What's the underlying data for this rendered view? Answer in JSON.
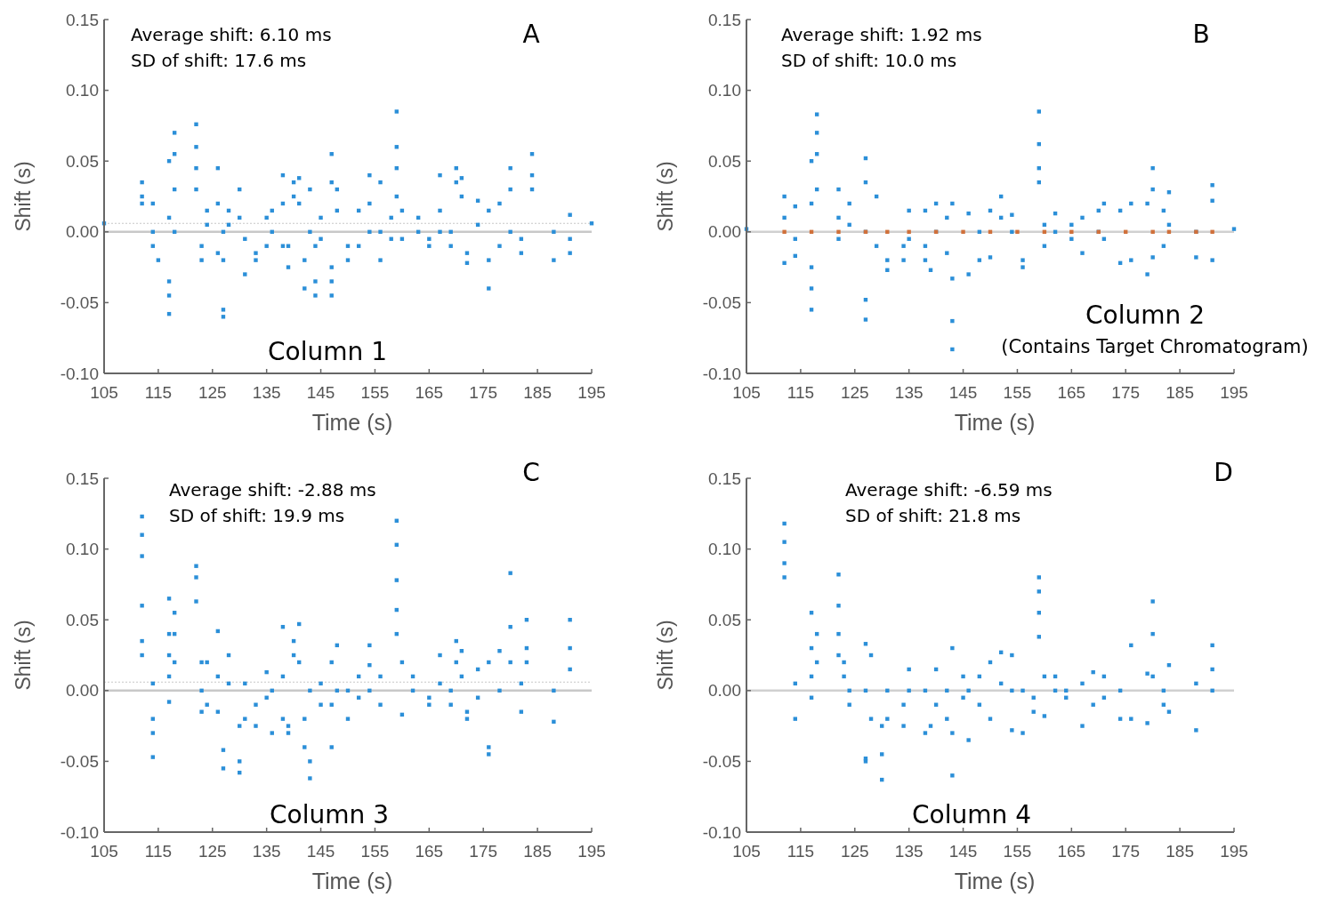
{
  "chart_data": [
    {
      "type": "scatter",
      "xlabel": "Time (s)",
      "ylabel": "Shift (s)",
      "annotations": [
        "Average shift: 6.10 ms",
        "SD of shift: 17.6 ms",
        "A",
        "Column 1"
      ],
      "xlim": [
        105,
        195
      ],
      "xticks": [
        105,
        115,
        125,
        135,
        145,
        155,
        165,
        175,
        185,
        195
      ],
      "ylim": [
        -0.1,
        0.15
      ],
      "yticks": [
        {
          "value": -0.1,
          "label": "-0.10"
        },
        {
          "value": -0.05,
          "label": "-0.05"
        },
        {
          "value": 0,
          "label": "0.00"
        },
        {
          "value": 0.05,
          "label": "0.05"
        },
        {
          "value": 0.1,
          "label": "0.10"
        },
        {
          "value": 0.15,
          "label": "0.15"
        }
      ],
      "marker": "square",
      "grid": false,
      "ref_lines": [
        {
          "axis": "y",
          "value": 0,
          "color": "#c8c8c8",
          "line_style": "solid"
        },
        {
          "axis": "y",
          "value": 0.006,
          "color": "#c8c8c8",
          "line_style": "dotted"
        }
      ],
      "series": [
        {
          "color": "#2b8fd8",
          "x": [
            105,
            112,
            112,
            112,
            114,
            114,
            114,
            115,
            117,
            117,
            117,
            117,
            117,
            118,
            118,
            118,
            118,
            122,
            122,
            122,
            122,
            123,
            123,
            124,
            124,
            126,
            126,
            126,
            127,
            127,
            127,
            127,
            128,
            128,
            130,
            130,
            131,
            131,
            133,
            133,
            135,
            135,
            136,
            136,
            138,
            138,
            138,
            139,
            139,
            140,
            140,
            141,
            141,
            142,
            142,
            143,
            143,
            144,
            144,
            144,
            145,
            145,
            147,
            147,
            147,
            147,
            147,
            148,
            148,
            150,
            150,
            152,
            152,
            154,
            154,
            154,
            156,
            156,
            156,
            158,
            158,
            159,
            159,
            159,
            159,
            160,
            160,
            163,
            163,
            165,
            165,
            167,
            167,
            167,
            169,
            169,
            170,
            170,
            171,
            171,
            172,
            172,
            174,
            174,
            176,
            176,
            176,
            178,
            178,
            180,
            180,
            180,
            182,
            182,
            184,
            184,
            184,
            188,
            188,
            191,
            191,
            191,
            195
          ],
          "values": [
            0.006,
            0.035,
            0.02,
            0.025,
            0.02,
            0.0,
            -0.01,
            -0.02,
            0.05,
            0.01,
            -0.035,
            -0.058,
            -0.045,
            0.07,
            0.055,
            0.03,
            0.0,
            0.076,
            0.06,
            0.045,
            0.03,
            -0.01,
            -0.02,
            0.015,
            0.005,
            0.045,
            0.02,
            -0.015,
            -0.055,
            -0.06,
            0.0,
            -0.02,
            0.015,
            0.005,
            0.03,
            0.01,
            -0.005,
            -0.03,
            -0.015,
            -0.02,
            0.01,
            -0.01,
            0.015,
            0.0,
            0.04,
            0.02,
            -0.01,
            -0.01,
            -0.025,
            0.035,
            0.025,
            0.038,
            0.02,
            -0.02,
            -0.04,
            0.03,
            0.0,
            -0.045,
            -0.035,
            -0.01,
            0.01,
            -0.005,
            0.055,
            0.035,
            -0.025,
            -0.045,
            -0.035,
            0.03,
            0.015,
            -0.01,
            -0.02,
            0.015,
            -0.01,
            0.04,
            0.02,
            0.0,
            0.035,
            0.0,
            -0.02,
            0.01,
            -0.005,
            0.085,
            0.06,
            0.045,
            0.025,
            0.015,
            -0.005,
            0.01,
            0.0,
            -0.005,
            -0.01,
            0.04,
            0.015,
            0.0,
            -0.01,
            0.0,
            0.045,
            0.035,
            0.038,
            0.025,
            -0.015,
            -0.022,
            0.022,
            0.005,
            0.015,
            -0.02,
            -0.04,
            0.02,
            -0.01,
            0.045,
            0.03,
            0.0,
            -0.005,
            -0.015,
            0.055,
            0.04,
            0.03,
            0.0,
            -0.02,
            0.012,
            -0.005,
            -0.015,
            0.006
          ]
        }
      ]
    },
    {
      "type": "scatter",
      "xlabel": "Time (s)",
      "ylabel": "Shift (s)",
      "annotations": [
        "Average shift: 1.92 ms",
        "SD of shift: 10.0 ms",
        "B",
        "Column 2",
        "(Contains Target Chromatogram)"
      ],
      "xlim": [
        105,
        195
      ],
      "xticks": [
        105,
        115,
        125,
        135,
        145,
        155,
        165,
        175,
        185,
        195
      ],
      "ylim": [
        -0.1,
        0.15
      ],
      "yticks": [
        {
          "value": -0.1,
          "label": "-0.10"
        },
        {
          "value": -0.05,
          "label": "-0.05"
        },
        {
          "value": 0,
          "label": "0.00"
        },
        {
          "value": 0.05,
          "label": "0.05"
        },
        {
          "value": 0.1,
          "label": "0.10"
        },
        {
          "value": 0.15,
          "label": "0.15"
        }
      ],
      "marker": "square",
      "grid": false,
      "ref_lines": [
        {
          "axis": "y",
          "value": 0,
          "color": "#d0d0d0",
          "line_style": "solid"
        }
      ],
      "series": [
        {
          "color": "#2b8fd8",
          "x": [
            105,
            112,
            112,
            112,
            114,
            114,
            114,
            117,
            117,
            117,
            117,
            117,
            118,
            118,
            118,
            118,
            122,
            122,
            122,
            124,
            124,
            127,
            127,
            127,
            127,
            127,
            129,
            129,
            131,
            131,
            134,
            134,
            135,
            135,
            138,
            138,
            138,
            139,
            140,
            140,
            142,
            142,
            143,
            143,
            143,
            146,
            146,
            148,
            148,
            150,
            150,
            152,
            152,
            154,
            154,
            156,
            156,
            159,
            159,
            159,
            159,
            160,
            160,
            162,
            162,
            165,
            165,
            167,
            167,
            170,
            170,
            171,
            171,
            174,
            174,
            176,
            176,
            179,
            179,
            180,
            180,
            180,
            182,
            182,
            183,
            183,
            188,
            188,
            191,
            191,
            191,
            195,
            143
          ],
          "values": [
            0.002,
            0.025,
            0.01,
            -0.022,
            0.018,
            -0.005,
            -0.017,
            0.05,
            0.02,
            -0.025,
            -0.04,
            -0.055,
            0.083,
            0.07,
            0.055,
            0.03,
            0.03,
            0.01,
            -0.005,
            0.02,
            0.005,
            0.052,
            0.035,
            0.0,
            -0.048,
            -0.062,
            0.025,
            -0.01,
            -0.02,
            -0.027,
            -0.01,
            -0.02,
            0.015,
            -0.005,
            0.015,
            -0.01,
            -0.02,
            -0.027,
            0.02,
            0.0,
            -0.015,
            0.01,
            0.02,
            -0.033,
            -0.063,
            0.013,
            -0.03,
            0.0,
            -0.02,
            0.015,
            -0.018,
            0.025,
            0.01,
            0.012,
            0.0,
            -0.02,
            -0.025,
            0.085,
            0.062,
            0.045,
            0.035,
            0.005,
            -0.01,
            0.013,
            0.0,
            0.005,
            -0.005,
            -0.015,
            0.01,
            0.015,
            0.0,
            0.02,
            -0.005,
            0.015,
            -0.022,
            0.02,
            -0.02,
            0.02,
            -0.03,
            0.045,
            0.03,
            -0.018,
            0.015,
            -0.01,
            0.028,
            0.005,
            0.0,
            -0.018,
            0.033,
            0.022,
            -0.02,
            0.002,
            -0.083
          ]
        },
        {
          "color": "#d0703a",
          "x": [
            112,
            117,
            122,
            127,
            131,
            135,
            140,
            145,
            150,
            155,
            160,
            165,
            170,
            175,
            180,
            183,
            188,
            191
          ],
          "values": [
            0,
            0,
            0,
            0,
            0,
            0,
            0,
            0,
            0,
            0,
            0,
            0,
            0,
            0,
            0,
            0,
            0,
            0
          ]
        }
      ]
    },
    {
      "type": "scatter",
      "xlabel": "Time (s)",
      "ylabel": "Shift (s)",
      "annotations": [
        "Average shift: -2.88 ms",
        "SD of shift: 19.9 ms",
        "C",
        "Column 3"
      ],
      "xlim": [
        105,
        195
      ],
      "xticks": [
        105,
        115,
        125,
        135,
        145,
        155,
        165,
        175,
        185,
        195
      ],
      "ylim": [
        -0.1,
        0.15
      ],
      "yticks": [
        {
          "value": -0.1,
          "label": "-0.10"
        },
        {
          "value": -0.05,
          "label": "-0.05"
        },
        {
          "value": 0,
          "label": "0.00"
        },
        {
          "value": 0.05,
          "label": "0.05"
        },
        {
          "value": 0.1,
          "label": "0.10"
        },
        {
          "value": 0.15,
          "label": "0.15"
        }
      ],
      "marker": "square",
      "grid": false,
      "ref_lines": [
        {
          "axis": "y",
          "value": 0,
          "color": "#c8c8c8",
          "line_style": "solid"
        },
        {
          "axis": "y",
          "value": 0.006,
          "color": "#c8c8c8",
          "line_style": "dotted"
        }
      ],
      "series": [
        {
          "color": "#2b8fd8",
          "x": [
            112,
            112,
            112,
            112,
            112,
            112,
            114,
            114,
            114,
            114,
            117,
            117,
            117,
            117,
            117,
            118,
            118,
            118,
            122,
            122,
            122,
            123,
            123,
            123,
            124,
            124,
            126,
            126,
            126,
            127,
            127,
            128,
            128,
            130,
            130,
            130,
            131,
            131,
            133,
            133,
            135,
            135,
            136,
            136,
            138,
            138,
            138,
            139,
            139,
            140,
            140,
            141,
            141,
            142,
            142,
            143,
            143,
            143,
            145,
            145,
            147,
            147,
            147,
            148,
            148,
            150,
            150,
            152,
            152,
            154,
            154,
            154,
            156,
            156,
            159,
            159,
            159,
            159,
            159,
            160,
            160,
            162,
            162,
            165,
            165,
            167,
            167,
            169,
            169,
            170,
            170,
            171,
            171,
            172,
            172,
            174,
            174,
            176,
            176,
            176,
            178,
            178,
            180,
            180,
            180,
            182,
            182,
            183,
            183,
            183,
            188,
            188,
            191,
            191,
            191
          ],
          "values": [
            0.123,
            0.11,
            0.095,
            0.06,
            0.035,
            0.025,
            0.005,
            -0.02,
            -0.03,
            -0.047,
            0.065,
            0.04,
            0.025,
            0.01,
            -0.008,
            0.055,
            0.04,
            0.02,
            0.088,
            0.08,
            0.063,
            0.02,
            0.0,
            -0.015,
            0.02,
            -0.01,
            0.042,
            0.01,
            -0.015,
            -0.042,
            -0.055,
            0.025,
            0.005,
            -0.025,
            -0.05,
            -0.058,
            0.005,
            -0.02,
            -0.01,
            -0.025,
            0.013,
            -0.005,
            0.0,
            -0.03,
            0.045,
            0.01,
            -0.02,
            -0.025,
            -0.03,
            0.035,
            0.025,
            0.047,
            0.02,
            -0.02,
            -0.04,
            -0.05,
            -0.062,
            0.0,
            0.005,
            -0.01,
            0.02,
            -0.01,
            -0.04,
            0.032,
            0.0,
            0.0,
            -0.02,
            0.01,
            -0.005,
            0.018,
            0.032,
            0.0,
            0.01,
            -0.01,
            0.12,
            0.103,
            0.078,
            0.057,
            0.04,
            0.02,
            -0.017,
            0.01,
            0.0,
            -0.005,
            -0.01,
            0.025,
            0.005,
            -0.01,
            0.0,
            0.035,
            0.02,
            0.028,
            0.01,
            -0.015,
            -0.02,
            0.015,
            -0.005,
            0.02,
            -0.04,
            -0.045,
            0.028,
            0.0,
            0.083,
            0.045,
            0.02,
            0.005,
            -0.015,
            0.05,
            0.03,
            0.02,
            0.0,
            -0.022,
            0.05,
            0.03,
            0.015
          ]
        }
      ]
    },
    {
      "type": "scatter",
      "xlabel": "Time (s)",
      "ylabel": "Shift (s)",
      "annotations": [
        "Average shift: -6.59 ms",
        "SD of shift: 21.8 ms",
        "D",
        "Column 4"
      ],
      "xlim": [
        105,
        195
      ],
      "xticks": [
        105,
        115,
        125,
        135,
        145,
        155,
        165,
        175,
        185,
        195
      ],
      "ylim": [
        -0.1,
        0.15
      ],
      "yticks": [
        {
          "value": -0.1,
          "label": "-0.10"
        },
        {
          "value": -0.05,
          "label": "-0.05"
        },
        {
          "value": 0,
          "label": "0.00"
        },
        {
          "value": 0.05,
          "label": "0.05"
        },
        {
          "value": 0.1,
          "label": "0.10"
        },
        {
          "value": 0.15,
          "label": "0.15"
        }
      ],
      "marker": "square",
      "grid": false,
      "ref_lines": [
        {
          "axis": "y",
          "value": 0,
          "color": "#d0d0d0",
          "line_style": "solid"
        }
      ],
      "series": [
        {
          "color": "#2b8fd8",
          "x": [
            112,
            112,
            112,
            112,
            114,
            114,
            117,
            117,
            117,
            117,
            118,
            118,
            122,
            122,
            122,
            122,
            123,
            123,
            124,
            124,
            127,
            127,
            127,
            127,
            128,
            128,
            130,
            130,
            130,
            131,
            131,
            134,
            134,
            135,
            135,
            138,
            138,
            139,
            140,
            140,
            142,
            142,
            143,
            143,
            143,
            145,
            145,
            146,
            146,
            148,
            148,
            150,
            150,
            152,
            152,
            154,
            154,
            154,
            156,
            156,
            158,
            158,
            159,
            159,
            159,
            159,
            160,
            160,
            162,
            162,
            164,
            164,
            167,
            167,
            169,
            169,
            171,
            171,
            174,
            174,
            176,
            176,
            179,
            179,
            180,
            180,
            180,
            182,
            182,
            183,
            183,
            188,
            188,
            191,
            191,
            191
          ],
          "values": [
            0.118,
            0.105,
            0.09,
            0.08,
            0.005,
            -0.02,
            0.055,
            0.03,
            0.01,
            -0.005,
            0.04,
            0.02,
            0.082,
            0.06,
            0.04,
            0.025,
            0.02,
            0.01,
            0.0,
            -0.01,
            0.033,
            0.0,
            -0.048,
            -0.05,
            0.025,
            -0.02,
            -0.025,
            -0.045,
            -0.063,
            0.0,
            -0.02,
            -0.01,
            -0.025,
            0.015,
            0.0,
            0.0,
            -0.03,
            -0.025,
            0.015,
            -0.01,
            0.0,
            -0.02,
            0.03,
            -0.03,
            -0.06,
            0.01,
            -0.005,
            -0.035,
            0.0,
            0.01,
            -0.01,
            0.02,
            -0.02,
            0.027,
            0.005,
            0.025,
            0.0,
            -0.028,
            0.0,
            -0.03,
            -0.005,
            -0.015,
            0.08,
            0.07,
            0.055,
            0.038,
            0.01,
            -0.018,
            0.01,
            0.0,
            0.0,
            -0.005,
            0.005,
            -0.025,
            0.013,
            -0.01,
            0.01,
            -0.005,
            0.0,
            -0.02,
            0.032,
            -0.02,
            0.012,
            -0.023,
            0.063,
            0.04,
            0.01,
            0.0,
            -0.01,
            0.018,
            -0.015,
            0.005,
            -0.028,
            0.032,
            0.015,
            0.0
          ]
        }
      ]
    }
  ]
}
